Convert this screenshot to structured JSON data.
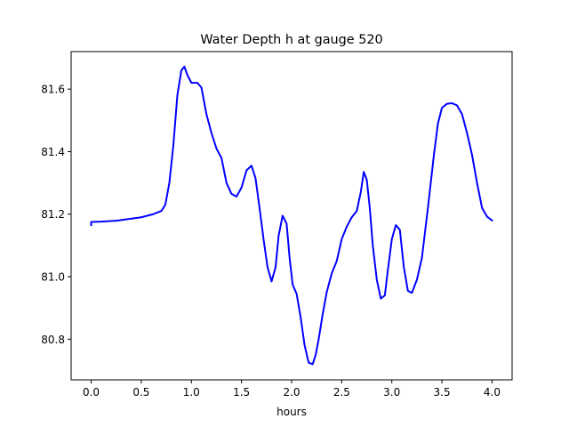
{
  "chart_data": {
    "type": "line",
    "title": "Water Depth h at gauge 520",
    "xlabel": "hours",
    "ylabel": "",
    "xlim": [
      -0.2,
      4.2
    ],
    "ylim": [
      80.67,
      81.72
    ],
    "grid": false,
    "x_ticks": [
      {
        "value": 0.0,
        "label": "0.0"
      },
      {
        "value": 0.5,
        "label": "0.5"
      },
      {
        "value": 1.0,
        "label": "1.0"
      },
      {
        "value": 1.5,
        "label": "1.5"
      },
      {
        "value": 2.0,
        "label": "2.0"
      },
      {
        "value": 2.5,
        "label": "2.5"
      },
      {
        "value": 3.0,
        "label": "3.0"
      },
      {
        "value": 3.5,
        "label": "3.5"
      },
      {
        "value": 4.0,
        "label": "4.0"
      }
    ],
    "y_ticks": [
      {
        "value": 80.8,
        "label": "80.8"
      },
      {
        "value": 81.0,
        "label": "81.0"
      },
      {
        "value": 81.2,
        "label": "81.2"
      },
      {
        "value": 81.4,
        "label": "81.4"
      },
      {
        "value": 81.6,
        "label": "81.6"
      }
    ],
    "series": [
      {
        "color": "#0000ff",
        "x": [
          0.0,
          0.0,
          0.1,
          0.25,
          0.5,
          0.62,
          0.7,
          0.74,
          0.78,
          0.82,
          0.86,
          0.9,
          0.93,
          0.96,
          1.0,
          1.06,
          1.1,
          1.15,
          1.2,
          1.25,
          1.3,
          1.35,
          1.4,
          1.45,
          1.5,
          1.55,
          1.6,
          1.64,
          1.68,
          1.72,
          1.76,
          1.8,
          1.84,
          1.87,
          1.91,
          1.95,
          1.98,
          2.01,
          2.05,
          2.09,
          2.13,
          2.17,
          2.21,
          2.24,
          2.27,
          2.31,
          2.35,
          2.4,
          2.45,
          2.5,
          2.55,
          2.6,
          2.65,
          2.69,
          2.72,
          2.75,
          2.78,
          2.81,
          2.85,
          2.89,
          2.93,
          2.96,
          3.0,
          3.04,
          3.08,
          3.12,
          3.16,
          3.2,
          3.25,
          3.3,
          3.36,
          3.42,
          3.46,
          3.5,
          3.55,
          3.6,
          3.65,
          3.7,
          3.75,
          3.8,
          3.85,
          3.9,
          3.95,
          4.0
        ],
        "y": [
          81.165,
          81.175,
          81.176,
          81.179,
          81.19,
          81.2,
          81.21,
          81.23,
          81.3,
          81.42,
          81.58,
          81.66,
          81.672,
          81.645,
          81.62,
          81.62,
          81.605,
          81.52,
          81.46,
          81.41,
          81.38,
          81.3,
          81.265,
          81.256,
          81.285,
          81.34,
          81.355,
          81.315,
          81.22,
          81.12,
          81.03,
          80.985,
          81.03,
          81.13,
          81.195,
          81.17,
          81.06,
          80.975,
          80.945,
          80.87,
          80.78,
          80.725,
          80.72,
          80.75,
          80.8,
          80.88,
          80.95,
          81.01,
          81.05,
          81.12,
          81.16,
          81.19,
          81.21,
          81.27,
          81.335,
          81.31,
          81.22,
          81.1,
          80.99,
          80.93,
          80.94,
          81.02,
          81.12,
          81.165,
          81.15,
          81.03,
          80.955,
          80.948,
          80.99,
          81.06,
          81.22,
          81.39,
          81.49,
          81.54,
          81.553,
          81.555,
          81.548,
          81.52,
          81.46,
          81.39,
          81.3,
          81.22,
          81.192,
          81.18
        ]
      }
    ]
  }
}
